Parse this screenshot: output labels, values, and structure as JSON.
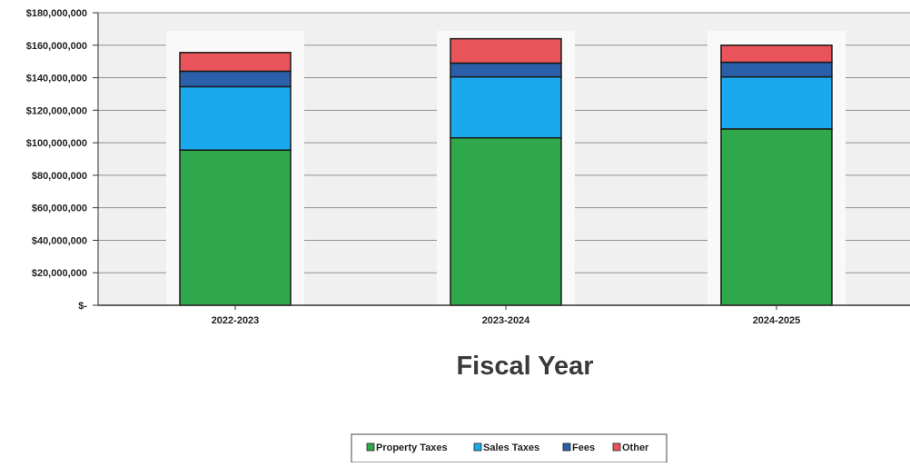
{
  "chart_data": {
    "type": "bar",
    "stacked": true,
    "title": "",
    "xlabel": "Fiscal Year",
    "ylabel": "",
    "ylim": [
      0,
      180000000
    ],
    "yticks": [
      {
        "value": 0,
        "label": "$-"
      },
      {
        "value": 20000000,
        "label": "$20,000,000"
      },
      {
        "value": 40000000,
        "label": "$40,000,000"
      },
      {
        "value": 60000000,
        "label": "$60,000,000"
      },
      {
        "value": 80000000,
        "label": "$80,000,000"
      },
      {
        "value": 100000000,
        "label": "$100,000,000"
      },
      {
        "value": 120000000,
        "label": "$120,000,000"
      },
      {
        "value": 140000000,
        "label": "$140,000,000"
      },
      {
        "value": 160000000,
        "label": "$160,000,000"
      },
      {
        "value": 180000000,
        "label": "$180,000,000"
      }
    ],
    "grid": true,
    "legend_position": "bottom",
    "categories": [
      "2022-2023",
      "2023-2024",
      "2024-2025"
    ],
    "series": [
      {
        "name": "Property Taxes",
        "color": "#2ea84a",
        "values": [
          95500000,
          103000000,
          108500000
        ]
      },
      {
        "name": "Sales Taxes",
        "color": "#1aa9ee",
        "values": [
          39000000,
          37500000,
          32000000
        ]
      },
      {
        "name": "Fees",
        "color": "#2a5faa",
        "values": [
          9500000,
          8500000,
          9000000
        ]
      },
      {
        "name": "Other",
        "color": "#e8545a",
        "values": [
          11500000,
          15000000,
          10500000
        ]
      }
    ],
    "colors": {
      "plot_background": "#f0f0f0",
      "bar_column_background": "#f9f9f9",
      "gridline": "#909090",
      "bar_outline": "#1a1a1a"
    }
  }
}
